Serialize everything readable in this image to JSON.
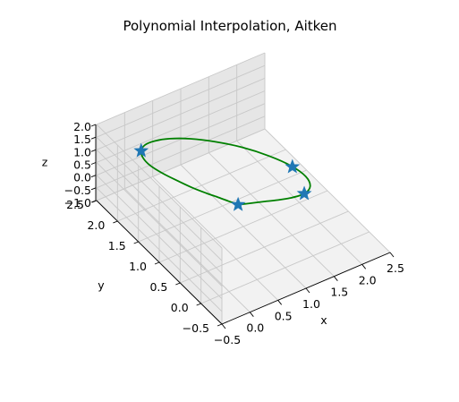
{
  "chart_data": {
    "type": "line",
    "projection": "3d",
    "title": "Polynomial Interpolation, Aitken",
    "xlabel": "x",
    "ylabel": "y",
    "zlabel": "z",
    "x_ticks": [
      "−0.5",
      "0.0",
      "0.5",
      "1.0",
      "1.5",
      "2.0",
      "2.5"
    ],
    "y_ticks": [
      "−0.5",
      "0.0",
      "0.5",
      "1.0",
      "1.5",
      "2.0",
      "2.5"
    ],
    "z_ticks": [
      "−1.0",
      "−0.5",
      "0.0",
      "0.5",
      "1.0",
      "1.5",
      "2.0"
    ],
    "xlim": [
      -0.5,
      2.5
    ],
    "ylim": [
      -0.5,
      2.5
    ],
    "zlim": [
      -1.0,
      2.0
    ],
    "grid": true,
    "series": [
      {
        "kind": "curve",
        "color": "#008000",
        "points": [
          [
            0.72,
            0.75,
            0.53
          ],
          [
            0.6,
            0.81,
            0.68
          ],
          [
            0.48,
            0.9,
            0.8
          ],
          [
            0.36,
            1.02,
            0.88
          ],
          [
            0.24,
            1.2,
            0.92
          ],
          [
            0.14,
            1.42,
            0.93
          ],
          [
            0.06,
            1.66,
            0.9
          ],
          [
            0.02,
            1.92,
            0.84
          ],
          [
            0.06,
            2.14,
            0.74
          ],
          [
            0.16,
            2.32,
            0.63
          ],
          [
            0.32,
            2.44,
            0.52
          ],
          [
            0.52,
            2.48,
            0.42
          ],
          [
            0.76,
            2.44,
            0.35
          ],
          [
            1.02,
            2.3,
            0.33
          ],
          [
            1.28,
            2.06,
            0.36
          ],
          [
            1.52,
            1.72,
            0.46
          ],
          [
            1.7,
            1.32,
            0.6
          ],
          [
            1.8,
            0.92,
            0.76
          ],
          [
            1.8,
            0.58,
            0.9
          ],
          [
            1.7,
            0.34,
            1.0
          ],
          [
            1.52,
            0.24,
            1.04
          ],
          [
            1.3,
            0.28,
            1.01
          ],
          [
            1.12,
            0.38,
            0.93
          ],
          [
            0.98,
            0.5,
            0.81
          ],
          [
            0.86,
            0.62,
            0.67
          ],
          [
            0.72,
            0.75,
            0.53
          ]
        ]
      },
      {
        "kind": "markers",
        "marker": "star",
        "color": "#1f77b4",
        "points": [
          [
            0.72,
            0.75,
            0.53
          ],
          [
            0.16,
            2.32,
            0.63
          ],
          [
            1.8,
            0.9,
            0.76
          ],
          [
            1.52,
            0.24,
            1.04
          ]
        ]
      }
    ]
  }
}
